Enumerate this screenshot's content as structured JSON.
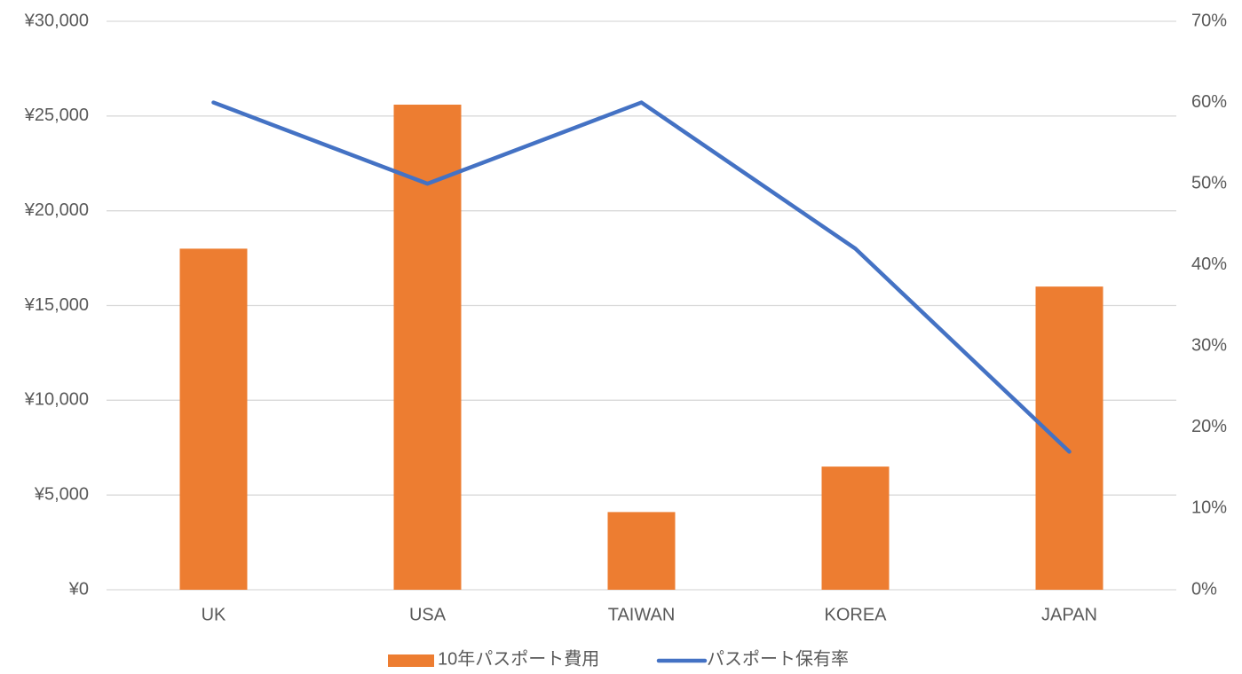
{
  "chart_data": {
    "type": "combo",
    "categories": [
      "UK",
      "USA",
      "TAIWAN",
      "KOREA",
      "JAPAN"
    ],
    "series": [
      {
        "name": "10年パスポート費用",
        "type": "bar",
        "color": "#ed7d31",
        "values": [
          18000,
          25600,
          4100,
          6500,
          16000
        ]
      },
      {
        "name": "パスポート保有率",
        "type": "line",
        "axis": "y2",
        "color": "#4472c4",
        "values": [
          60,
          50,
          60,
          42,
          17
        ]
      }
    ],
    "ylim": [
      0,
      30000
    ],
    "yticks": [
      {
        "value": 0,
        "label": "¥0"
      },
      {
        "value": 5000,
        "label": "¥5,000"
      },
      {
        "value": 10000,
        "label": "¥10,000"
      },
      {
        "value": 15000,
        "label": "¥15,000"
      },
      {
        "value": 20000,
        "label": "¥20,000"
      },
      {
        "value": 25000,
        "label": "¥25,000"
      },
      {
        "value": 30000,
        "label": "¥30,000"
      }
    ],
    "y2lim": [
      0,
      70
    ],
    "y2ticks": [
      {
        "value": 0,
        "label": "0%"
      },
      {
        "value": 10,
        "label": "10%"
      },
      {
        "value": 20,
        "label": "20%"
      },
      {
        "value": 30,
        "label": "30%"
      },
      {
        "value": 40,
        "label": "40%"
      },
      {
        "value": 50,
        "label": "50%"
      },
      {
        "value": 60,
        "label": "60%"
      },
      {
        "value": 70,
        "label": "70%"
      }
    ],
    "grid": true,
    "legend": "bottom"
  }
}
